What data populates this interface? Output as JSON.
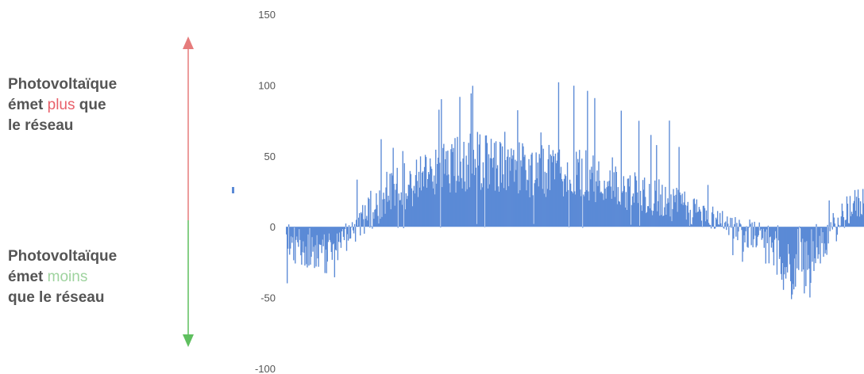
{
  "annotations": {
    "top": {
      "line1": "Photovoltaïque",
      "pre": "émet ",
      "highlight": "plus",
      "post": " que",
      "line3": "le réseau"
    },
    "bottom": {
      "line1": "Photovoltaïque",
      "pre": "émet ",
      "highlight": "moins",
      "line3": "que le réseau"
    }
  },
  "colors": {
    "bars": "#5b8ad6",
    "arrow_up": "#e67c7c",
    "arrow_down": "#5fbf5f",
    "highlight_plus": "#e8606a",
    "highlight_moins": "#9ed39e",
    "text": "#555555"
  },
  "chart_data": {
    "type": "bar",
    "title": "",
    "xlabel": "",
    "ylabel": "",
    "ylim": [
      -100,
      150
    ],
    "yticks": [
      {
        "value": 150,
        "label": "150"
      },
      {
        "value": 100,
        "label": "100"
      },
      {
        "value": 50,
        "label": "50"
      },
      {
        "value": 0,
        "label": "0"
      },
      {
        "value": -50,
        "label": "-50"
      },
      {
        "value": -100,
        "label": "-100"
      }
    ],
    "grid": false,
    "legend": "none",
    "envelope": [
      {
        "x": 0,
        "base": -12,
        "amp": 14,
        "spike": 18
      },
      {
        "x": 0.05,
        "base": -18,
        "amp": 12,
        "spike": 10
      },
      {
        "x": 0.1,
        "base": -10,
        "amp": 12,
        "spike": 20
      },
      {
        "x": 0.17,
        "base": 22,
        "amp": 16,
        "spike": 28
      },
      {
        "x": 0.25,
        "base": 38,
        "amp": 18,
        "spike": 45
      },
      {
        "x": 0.33,
        "base": 48,
        "amp": 22,
        "spike": 50
      },
      {
        "x": 0.42,
        "base": 40,
        "amp": 20,
        "spike": 50
      },
      {
        "x": 0.5,
        "base": 38,
        "amp": 20,
        "spike": 45
      },
      {
        "x": 0.58,
        "base": 30,
        "amp": 18,
        "spike": 50
      },
      {
        "x": 0.66,
        "base": 18,
        "amp": 14,
        "spike": 45
      },
      {
        "x": 0.75,
        "base": 5,
        "amp": 8,
        "spike": 30
      },
      {
        "x": 0.82,
        "base": -8,
        "amp": 12,
        "spike": 10
      },
      {
        "x": 0.88,
        "base": -35,
        "amp": 25,
        "spike": 25
      },
      {
        "x": 0.93,
        "base": -12,
        "amp": 12,
        "spike": 8
      },
      {
        "x": 0.97,
        "base": 12,
        "amp": 12,
        "spike": 18
      },
      {
        "x": 1.0,
        "base": 18,
        "amp": 12,
        "spike": 15
      }
    ],
    "n_bars": 720,
    "seed": 17
  }
}
